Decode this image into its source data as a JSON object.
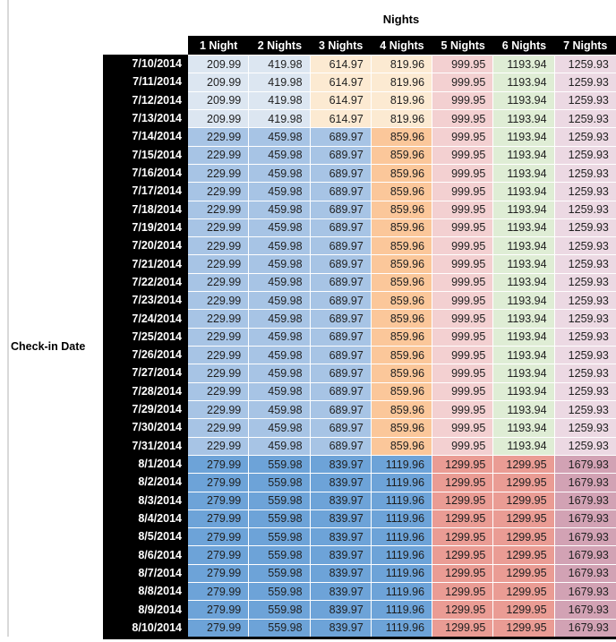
{
  "title": "Nights",
  "row_axis_label": "Check-in Date",
  "colors": {
    "light_blue": "#dce6f1",
    "medium_blue": "#a7c4e5",
    "dark_blue": "#6da3d8",
    "tan": "#fcead2",
    "orange": "#fbc79a",
    "light_pink": "#f3d0d1",
    "light_green": "#dfedd5",
    "light_lavender": "#ecd9e3",
    "salmon": "#ea9c94",
    "mauve": "#d2a2b4",
    "header_bg": "#000000",
    "header_text": "#ffffff",
    "value_text": "#1f1f1f",
    "edge_line": "#d9d9d9"
  },
  "cell_color_groups": {
    "early_july": [
      "light_blue",
      "light_blue",
      "tan",
      "tan",
      "light_pink",
      "light_green",
      "light_lavender"
    ],
    "mid_july": [
      "medium_blue",
      "medium_blue",
      "medium_blue",
      "orange",
      "light_pink",
      "light_green",
      "light_lavender"
    ],
    "august": [
      "dark_blue",
      "dark_blue",
      "dark_blue",
      "dark_blue",
      "salmon",
      "salmon",
      "mauve"
    ]
  },
  "chart_data": {
    "type": "table",
    "title": "Nights",
    "row_axis_label": "Check-in Date",
    "columns": [
      "1 Night",
      "2 Nights",
      "3 Nights",
      "4 Nights",
      "5 Nights",
      "6 Nights",
      "7 Nights"
    ],
    "rows": [
      {
        "date": "7/10/2014",
        "group": "early_july",
        "values": [
          "209.99",
          "419.98",
          "614.97",
          "819.96",
          "999.95",
          "1193.94",
          "1259.93"
        ]
      },
      {
        "date": "7/11/2014",
        "group": "early_july",
        "values": [
          "209.99",
          "419.98",
          "614.97",
          "819.96",
          "999.95",
          "1193.94",
          "1259.93"
        ]
      },
      {
        "date": "7/12/2014",
        "group": "early_july",
        "values": [
          "209.99",
          "419.98",
          "614.97",
          "819.96",
          "999.95",
          "1193.94",
          "1259.93"
        ]
      },
      {
        "date": "7/13/2014",
        "group": "early_july",
        "values": [
          "209.99",
          "419.98",
          "614.97",
          "819.96",
          "999.95",
          "1193.94",
          "1259.93"
        ]
      },
      {
        "date": "7/14/2014",
        "group": "mid_july",
        "values": [
          "229.99",
          "459.98",
          "689.97",
          "859.96",
          "999.95",
          "1193.94",
          "1259.93"
        ]
      },
      {
        "date": "7/15/2014",
        "group": "mid_july",
        "values": [
          "229.99",
          "459.98",
          "689.97",
          "859.96",
          "999.95",
          "1193.94",
          "1259.93"
        ]
      },
      {
        "date": "7/16/2014",
        "group": "mid_july",
        "values": [
          "229.99",
          "459.98",
          "689.97",
          "859.96",
          "999.95",
          "1193.94",
          "1259.93"
        ]
      },
      {
        "date": "7/17/2014",
        "group": "mid_july",
        "values": [
          "229.99",
          "459.98",
          "689.97",
          "859.96",
          "999.95",
          "1193.94",
          "1259.93"
        ]
      },
      {
        "date": "7/18/2014",
        "group": "mid_july",
        "values": [
          "229.99",
          "459.98",
          "689.97",
          "859.96",
          "999.95",
          "1193.94",
          "1259.93"
        ]
      },
      {
        "date": "7/19/2014",
        "group": "mid_july",
        "values": [
          "229.99",
          "459.98",
          "689.97",
          "859.96",
          "999.95",
          "1193.94",
          "1259.93"
        ]
      },
      {
        "date": "7/20/2014",
        "group": "mid_july",
        "values": [
          "229.99",
          "459.98",
          "689.97",
          "859.96",
          "999.95",
          "1193.94",
          "1259.93"
        ]
      },
      {
        "date": "7/21/2014",
        "group": "mid_july",
        "values": [
          "229.99",
          "459.98",
          "689.97",
          "859.96",
          "999.95",
          "1193.94",
          "1259.93"
        ]
      },
      {
        "date": "7/22/2014",
        "group": "mid_july",
        "values": [
          "229.99",
          "459.98",
          "689.97",
          "859.96",
          "999.95",
          "1193.94",
          "1259.93"
        ]
      },
      {
        "date": "7/23/2014",
        "group": "mid_july",
        "values": [
          "229.99",
          "459.98",
          "689.97",
          "859.96",
          "999.95",
          "1193.94",
          "1259.93"
        ]
      },
      {
        "date": "7/24/2014",
        "group": "mid_july",
        "values": [
          "229.99",
          "459.98",
          "689.97",
          "859.96",
          "999.95",
          "1193.94",
          "1259.93"
        ]
      },
      {
        "date": "7/25/2014",
        "group": "mid_july",
        "values": [
          "229.99",
          "459.98",
          "689.97",
          "859.96",
          "999.95",
          "1193.94",
          "1259.93"
        ]
      },
      {
        "date": "7/26/2014",
        "group": "mid_july",
        "values": [
          "229.99",
          "459.98",
          "689.97",
          "859.96",
          "999.95",
          "1193.94",
          "1259.93"
        ]
      },
      {
        "date": "7/27/2014",
        "group": "mid_july",
        "values": [
          "229.99",
          "459.98",
          "689.97",
          "859.96",
          "999.95",
          "1193.94",
          "1259.93"
        ]
      },
      {
        "date": "7/28/2014",
        "group": "mid_july",
        "values": [
          "229.99",
          "459.98",
          "689.97",
          "859.96",
          "999.95",
          "1193.94",
          "1259.93"
        ]
      },
      {
        "date": "7/29/2014",
        "group": "mid_july",
        "values": [
          "229.99",
          "459.98",
          "689.97",
          "859.96",
          "999.95",
          "1193.94",
          "1259.93"
        ]
      },
      {
        "date": "7/30/2014",
        "group": "mid_july",
        "values": [
          "229.99",
          "459.98",
          "689.97",
          "859.96",
          "999.95",
          "1193.94",
          "1259.93"
        ]
      },
      {
        "date": "7/31/2014",
        "group": "mid_july",
        "values": [
          "229.99",
          "459.98",
          "689.97",
          "859.96",
          "999.95",
          "1193.94",
          "1259.93"
        ]
      },
      {
        "date": "8/1/2014",
        "group": "august",
        "values": [
          "279.99",
          "559.98",
          "839.97",
          "1119.96",
          "1299.95",
          "1299.95",
          "1679.93"
        ]
      },
      {
        "date": "8/2/2014",
        "group": "august",
        "values": [
          "279.99",
          "559.98",
          "839.97",
          "1119.96",
          "1299.95",
          "1299.95",
          "1679.93"
        ]
      },
      {
        "date": "8/3/2014",
        "group": "august",
        "values": [
          "279.99",
          "559.98",
          "839.97",
          "1119.96",
          "1299.95",
          "1299.95",
          "1679.93"
        ]
      },
      {
        "date": "8/4/2014",
        "group": "august",
        "values": [
          "279.99",
          "559.98",
          "839.97",
          "1119.96",
          "1299.95",
          "1299.95",
          "1679.93"
        ]
      },
      {
        "date": "8/5/2014",
        "group": "august",
        "values": [
          "279.99",
          "559.98",
          "839.97",
          "1119.96",
          "1299.95",
          "1299.95",
          "1679.93"
        ]
      },
      {
        "date": "8/6/2014",
        "group": "august",
        "values": [
          "279.99",
          "559.98",
          "839.97",
          "1119.96",
          "1299.95",
          "1299.95",
          "1679.93"
        ]
      },
      {
        "date": "8/7/2014",
        "group": "august",
        "values": [
          "279.99",
          "559.98",
          "839.97",
          "1119.96",
          "1299.95",
          "1299.95",
          "1679.93"
        ]
      },
      {
        "date": "8/8/2014",
        "group": "august",
        "values": [
          "279.99",
          "559.98",
          "839.97",
          "1119.96",
          "1299.95",
          "1299.95",
          "1679.93"
        ]
      },
      {
        "date": "8/9/2014",
        "group": "august",
        "values": [
          "279.99",
          "559.98",
          "839.97",
          "1119.96",
          "1299.95",
          "1299.95",
          "1679.93"
        ]
      },
      {
        "date": "8/10/2014",
        "group": "august",
        "values": [
          "279.99",
          "559.98",
          "839.97",
          "1119.96",
          "1299.95",
          "1299.95",
          "1679.93"
        ]
      }
    ]
  }
}
